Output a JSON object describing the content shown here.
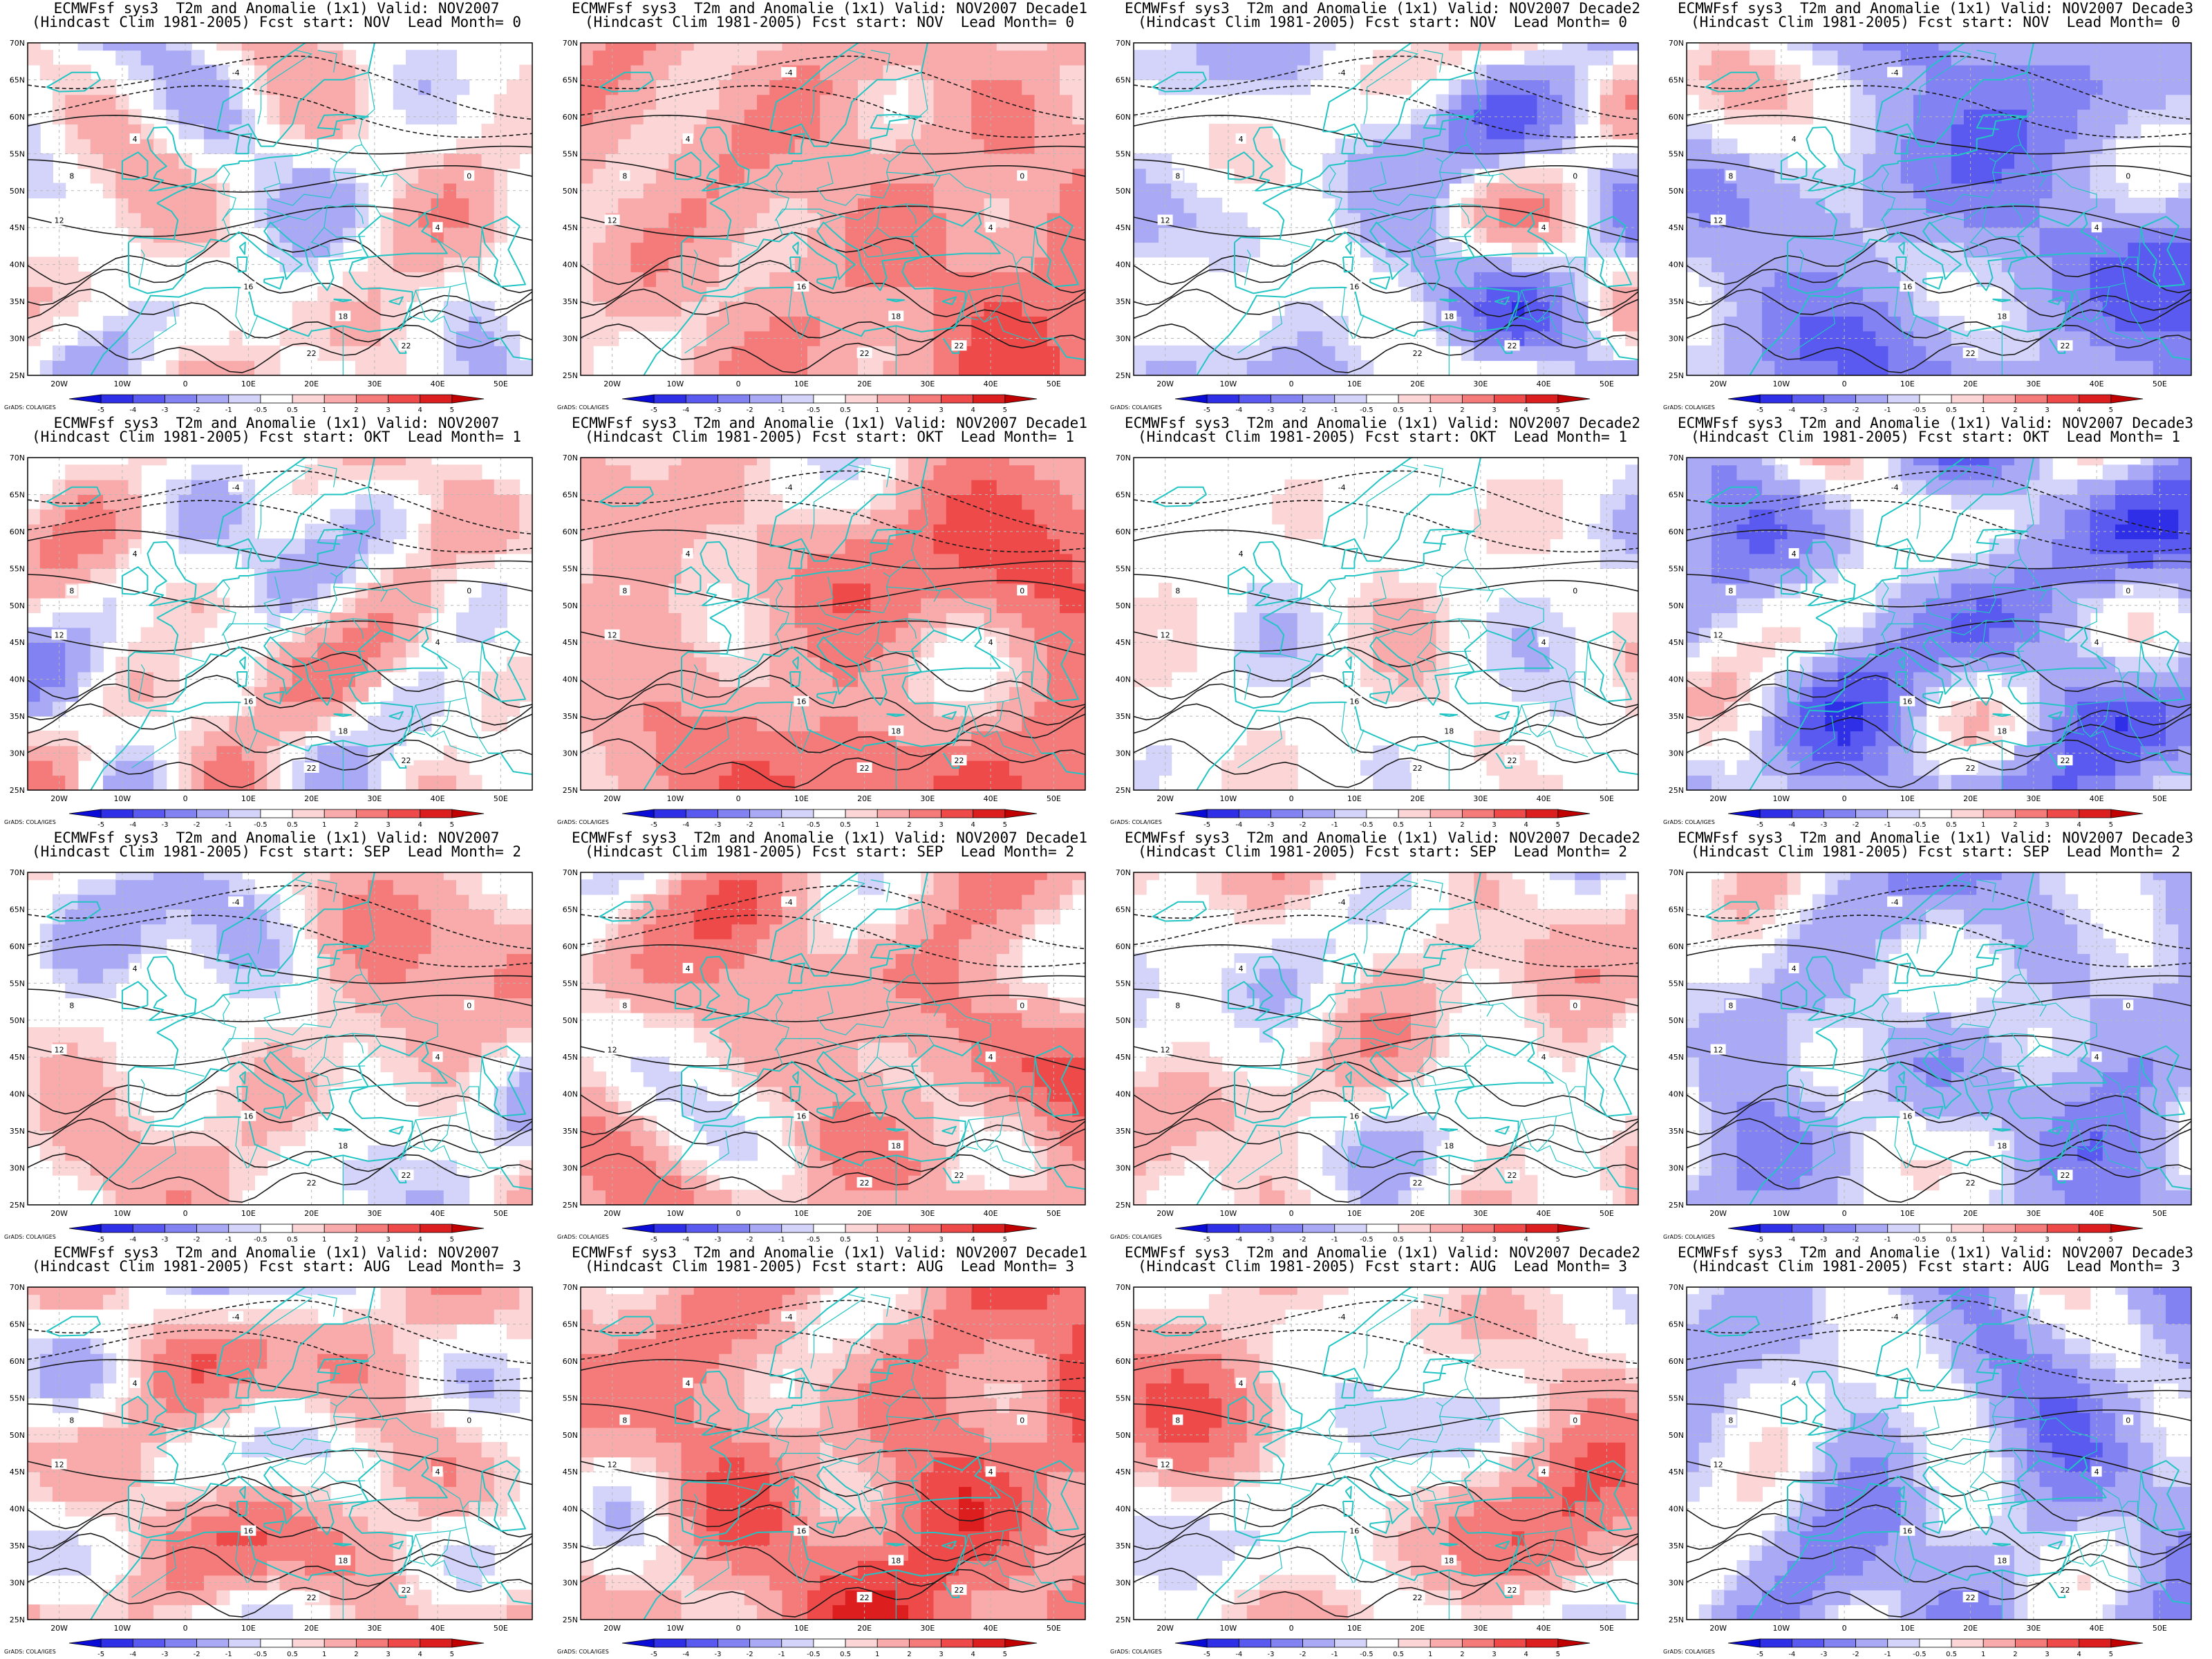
{
  "model": "ECMWFsf sys3",
  "variable": "T2m and Anomalie (1x1)",
  "hindcast": "(Hindcast Clim 1981-2005)",
  "valid_label": "Valid:",
  "fcst_label": "Fcst start:",
  "lead_label": "Lead Month=",
  "credit": "GrADS: COLA/IGES",
  "lat_labels": [
    "70N",
    "65N",
    "60N",
    "55N",
    "50N",
    "45N",
    "40N",
    "35N",
    "30N",
    "25N"
  ],
  "lon_labels": [
    "20W",
    "10W",
    "0",
    "10E",
    "20E",
    "30E",
    "40E",
    "50E"
  ],
  "colorbar": {
    "ticks": [
      "-5",
      "-4",
      "-3",
      "-2",
      "-1",
      "-0.5",
      "0.5",
      "1",
      "2",
      "3",
      "4",
      "5"
    ],
    "colors": [
      "#0b0bd8",
      "#2f2fe8",
      "#5a5af0",
      "#8282f2",
      "#a9a9f6",
      "#d4d4fb",
      "#ffffff",
      "#fcd6d6",
      "#f9aaaa",
      "#f57b7b",
      "#ee4a4a",
      "#dc1e1e",
      "#c00000"
    ]
  },
  "columns": [
    "NOV2007",
    "NOV2007 Decade1",
    "NOV2007 Decade2",
    "NOV2007 Decade3"
  ],
  "rows": [
    {
      "fcst_start": "NOV",
      "lead": "0"
    },
    {
      "fcst_start": "OKT",
      "lead": "1"
    },
    {
      "fcst_start": "SEP",
      "lead": "2"
    },
    {
      "fcst_start": "AUG",
      "lead": "3"
    }
  ],
  "panels": [
    {
      "valid": "NOV2007",
      "fcst_start": "NOV",
      "lead": "0",
      "anomaly_bias": 0.2
    },
    {
      "valid": "NOV2007 Decade1",
      "fcst_start": "NOV",
      "lead": "0",
      "anomaly_bias": 1.6
    },
    {
      "valid": "NOV2007 Decade2",
      "fcst_start": "NOV",
      "lead": "0",
      "anomaly_bias": -0.6
    },
    {
      "valid": "NOV2007 Decade3",
      "fcst_start": "NOV",
      "lead": "0",
      "anomaly_bias": -1.6
    },
    {
      "valid": "NOV2007",
      "fcst_start": "OKT",
      "lead": "1",
      "anomaly_bias": 0.3
    },
    {
      "valid": "NOV2007 Decade1",
      "fcst_start": "OKT",
      "lead": "1",
      "anomaly_bias": 1.7
    },
    {
      "valid": "NOV2007 Decade2",
      "fcst_start": "OKT",
      "lead": "1",
      "anomaly_bias": 0.1
    },
    {
      "valid": "NOV2007 Decade3",
      "fcst_start": "OKT",
      "lead": "1",
      "anomaly_bias": -1.4
    },
    {
      "valid": "NOV2007",
      "fcst_start": "SEP",
      "lead": "2",
      "anomaly_bias": 0.4
    },
    {
      "valid": "NOV2007 Decade1",
      "fcst_start": "SEP",
      "lead": "2",
      "anomaly_bias": 1.3
    },
    {
      "valid": "NOV2007 Decade2",
      "fcst_start": "SEP",
      "lead": "2",
      "anomaly_bias": 0.4
    },
    {
      "valid": "NOV2007 Decade3",
      "fcst_start": "SEP",
      "lead": "2",
      "anomaly_bias": -1.0
    },
    {
      "valid": "NOV2007",
      "fcst_start": "AUG",
      "lead": "3",
      "anomaly_bias": 0.7
    },
    {
      "valid": "NOV2007 Decade1",
      "fcst_start": "AUG",
      "lead": "3",
      "anomaly_bias": 2.0
    },
    {
      "valid": "NOV2007 Decade2",
      "fcst_start": "AUG",
      "lead": "3",
      "anomaly_bias": 0.6
    },
    {
      "valid": "NOV2007 Decade3",
      "fcst_start": "AUG",
      "lead": "3",
      "anomaly_bias": -1.1
    }
  ],
  "contour_labels": [
    "-4",
    "0",
    "4",
    "8",
    "12",
    "16",
    "18",
    "22"
  ]
}
